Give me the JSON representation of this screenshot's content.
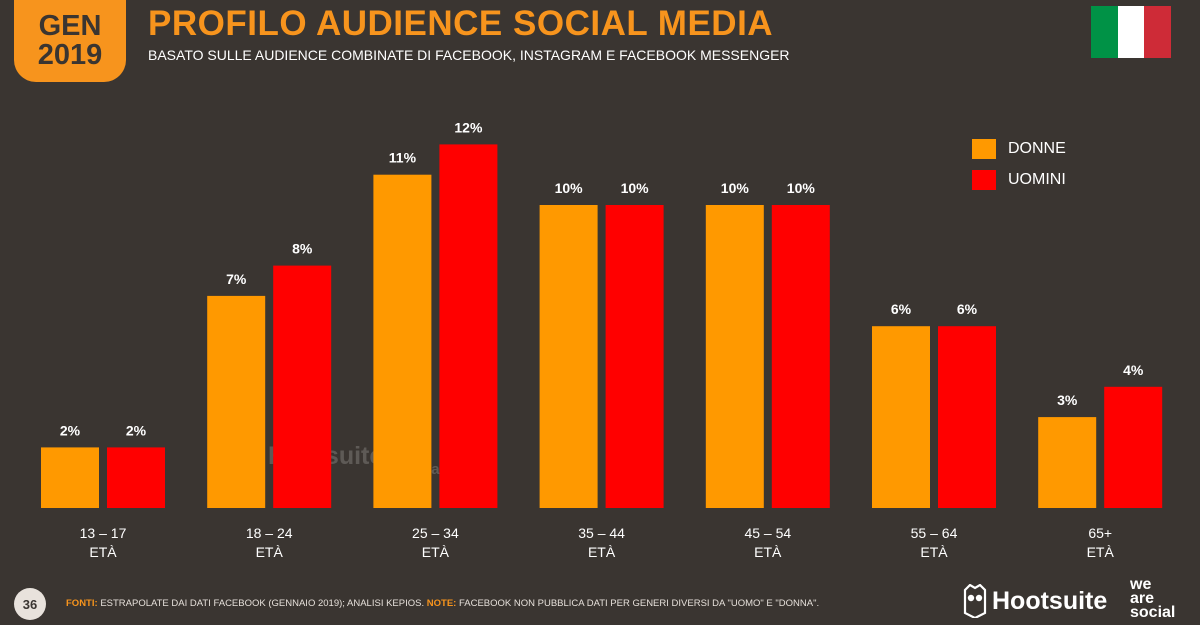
{
  "header": {
    "date_month": "GEN",
    "date_year": "2019",
    "title": "PROFILO AUDIENCE SOCIAL MEDIA",
    "subtitle": "BASATO SULLE AUDIENCE COMBINATE DI FACEBOOK, INSTAGRAM E FACEBOOK MESSENGER",
    "flag_colors": [
      "#009246",
      "#ffffff",
      "#ce2b37"
    ]
  },
  "colors": {
    "background": "#3a3531",
    "accent": "#f7941d",
    "women": "#ff9900",
    "men": "#ff0000"
  },
  "chart_data": {
    "type": "bar",
    "categories": [
      "13 – 17",
      "18 – 24",
      "25 – 34",
      "35 – 44",
      "45 – 54",
      "55 – 64",
      "65+"
    ],
    "category_sublabel": "ETÀ",
    "series": [
      {
        "name": "DONNE",
        "values": [
          2,
          7,
          11,
          10,
          10,
          6,
          3
        ],
        "labels": [
          "2%",
          "7%",
          "11%",
          "10%",
          "10%",
          "6%",
          "3%"
        ]
      },
      {
        "name": "UOMINI",
        "values": [
          2,
          8,
          12,
          10,
          10,
          6,
          4
        ],
        "labels": [
          "2%",
          "8%",
          "12%",
          "10%",
          "10%",
          "6%",
          "4%"
        ]
      }
    ],
    "title": "",
    "xlabel": "",
    "ylabel": "",
    "ylim": [
      0,
      12
    ],
    "grid": false,
    "legend_position": "top-right"
  },
  "footer": {
    "page_number": "36",
    "source_label": "FONTI:",
    "source_text": "ESTRAPOLATE DAI DATI FACEBOOK (GENNAIO 2019); ANALISI KEPIOS.",
    "note_label": "NOTE:",
    "note_text": "FACEBOOK NON PUBBLICA DATI PER GENERI DIVERSI DA \"UOMO\" E \"DONNA\".",
    "logo_hootsuite": "Hootsuite",
    "logo_was": [
      "we",
      "are",
      "social"
    ]
  }
}
